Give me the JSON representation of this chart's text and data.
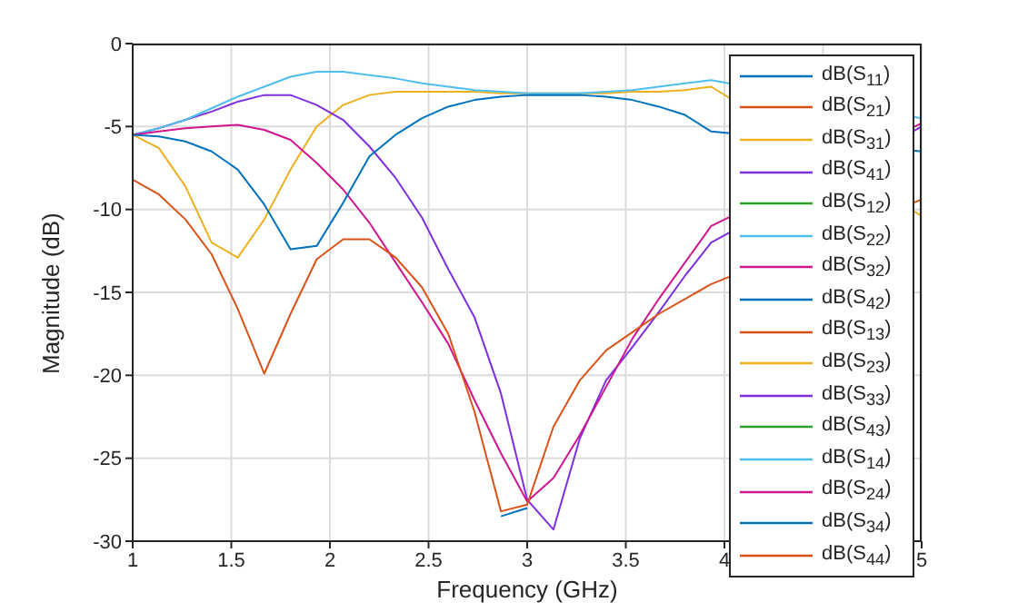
{
  "chart_data": {
    "type": "line",
    "xlabel": "Frequency (GHz)",
    "ylabel": "Magnitude (dB)",
    "x": [
      1,
      1.133,
      1.267,
      1.4,
      1.533,
      1.667,
      1.8,
      1.933,
      2.067,
      2.2,
      2.333,
      2.467,
      2.6,
      2.733,
      2.867,
      3,
      3.133,
      3.267,
      3.4,
      3.533,
      3.667,
      3.8,
      3.933,
      4.067,
      4.2,
      4.333,
      4.467,
      4.6,
      4.733,
      4.867,
      5
    ],
    "xlim": [
      1,
      5
    ],
    "ylim": [
      -30,
      0
    ],
    "xticks": [
      1,
      1.5,
      2,
      2.5,
      3,
      3.5,
      4,
      {
        "value": 4.5,
        "label": null
      },
      5
    ],
    "yticks": [
      -30,
      -25,
      -20,
      -15,
      -10,
      -5,
      0
    ],
    "grid": true,
    "legend": "right",
    "series": [
      {
        "name": "dB(S$_{11}$)",
        "color": "#0072bd",
        "values": [
          null,
          null,
          null,
          null,
          null,
          null,
          null,
          null,
          null,
          null,
          null,
          null,
          null,
          null,
          -28.5,
          -28.0,
          null,
          null,
          null,
          null,
          null,
          null,
          null,
          null,
          null,
          null,
          null,
          null,
          null,
          null,
          null
        ]
      },
      {
        "name": "dB(S$_{21}$)",
        "color": "#d95319",
        "values": [
          null,
          null,
          null,
          null,
          null,
          null,
          null,
          null,
          null,
          null,
          null,
          null,
          null,
          null,
          null,
          null,
          null,
          null,
          null,
          null,
          null,
          null,
          null,
          null,
          null,
          null,
          null,
          null,
          null,
          null,
          null
        ]
      },
      {
        "name": "dB(S$_{31}$)",
        "color": "#edb120",
        "values": [
          null,
          null,
          null,
          null,
          null,
          null,
          null,
          null,
          null,
          null,
          null,
          null,
          null,
          null,
          null,
          null,
          null,
          null,
          null,
          null,
          null,
          null,
          null,
          null,
          null,
          null,
          null,
          null,
          null,
          null,
          null
        ]
      },
      {
        "name": "dB(S$_{41}$)",
        "color": "#7e2fe0",
        "values": [
          null,
          null,
          null,
          null,
          null,
          null,
          null,
          null,
          null,
          null,
          null,
          null,
          null,
          null,
          null,
          null,
          null,
          null,
          null,
          null,
          null,
          null,
          null,
          null,
          null,
          null,
          null,
          null,
          null,
          null,
          null
        ]
      },
      {
        "name": "dB(S$_{12}$)",
        "color": "#2ca02c",
        "values": [
          null,
          null,
          null,
          null,
          null,
          null,
          null,
          null,
          null,
          null,
          null,
          null,
          null,
          null,
          null,
          null,
          null,
          null,
          null,
          null,
          null,
          null,
          null,
          null,
          null,
          null,
          null,
          null,
          null,
          null,
          null
        ]
      },
      {
        "name": "dB(S$_{22}$)",
        "color": "#4dbeee",
        "values": [
          null,
          null,
          null,
          null,
          null,
          null,
          null,
          null,
          null,
          null,
          null,
          null,
          null,
          null,
          null,
          null,
          null,
          null,
          null,
          null,
          null,
          null,
          null,
          null,
          null,
          null,
          null,
          null,
          null,
          null,
          null
        ]
      },
      {
        "name": "dB(S$_{32}$)",
        "color": "#d0158f",
        "values": [
          null,
          null,
          null,
          null,
          null,
          null,
          null,
          null,
          null,
          null,
          null,
          null,
          null,
          null,
          null,
          null,
          null,
          null,
          null,
          null,
          null,
          null,
          null,
          null,
          null,
          null,
          null,
          null,
          null,
          null,
          null
        ]
      },
      {
        "name": "dB(S$_{42}$)",
        "color": "#0072bd",
        "values": [
          null,
          null,
          null,
          null,
          null,
          null,
          null,
          null,
          null,
          null,
          null,
          null,
          null,
          null,
          null,
          null,
          null,
          null,
          null,
          null,
          null,
          null,
          null,
          null,
          null,
          null,
          null,
          null,
          null,
          null,
          null
        ]
      },
      {
        "name": "dB(S$_{13}$)",
        "color": "#d95319",
        "values": [
          null,
          null,
          null,
          null,
          null,
          null,
          null,
          null,
          null,
          null,
          null,
          null,
          null,
          null,
          null,
          null,
          null,
          null,
          null,
          null,
          null,
          null,
          null,
          null,
          null,
          null,
          null,
          null,
          null,
          null,
          null
        ]
      },
      {
        "name": "dB(S$_{23}$)",
        "color": "#edb120",
        "values": [
          -5.5,
          -6.3,
          -8.6,
          -12.0,
          -12.9,
          -10.6,
          -7.6,
          -5.0,
          -3.7,
          -3.1,
          -2.9,
          -2.9,
          -2.9,
          -2.9,
          -3.0,
          -3.0,
          -3.0,
          -3.0,
          -3.0,
          -2.9,
          -2.9,
          -2.8,
          -2.6,
          null,
          null,
          null,
          null,
          null,
          null,
          null,
          -10.4
        ]
      },
      {
        "name": "dB(S$_{33}$)",
        "color": "#7e2fe0",
        "values": [
          -5.5,
          -5.1,
          -4.6,
          -4.1,
          -3.5,
          -3.1,
          -3.1,
          -3.7,
          -4.6,
          -6.2,
          -8.1,
          -10.5,
          -13.6,
          -16.5,
          -21.1,
          -27.5,
          -29.3,
          -23.8,
          -20.3,
          -18.3,
          -16.2,
          -14.0,
          -12.0,
          null,
          null,
          null,
          null,
          null,
          null,
          null,
          -5.0
        ]
      },
      {
        "name": "dB(S$_{43}$)",
        "color": "#2ca02c",
        "values": [
          null,
          null,
          null,
          null,
          null,
          null,
          null,
          null,
          null,
          null,
          null,
          null,
          null,
          null,
          null,
          null,
          null,
          null,
          null,
          null,
          null,
          null,
          null,
          null,
          null,
          null,
          null,
          null,
          null,
          null,
          null
        ]
      },
      {
        "name": "dB(S$_{14}$)",
        "color": "#4dbeee",
        "values": [
          -5.5,
          -5.1,
          -4.6,
          -3.9,
          -3.2,
          -2.6,
          -2.0,
          -1.7,
          -1.7,
          -1.9,
          -2.1,
          -2.4,
          -2.6,
          -2.8,
          -2.9,
          -3.0,
          -3.0,
          -3.0,
          -2.9,
          -2.8,
          -2.6,
          -2.4,
          -2.2,
          null,
          null,
          null,
          null,
          null,
          null,
          null,
          -4.5
        ]
      },
      {
        "name": "dB(S$_{24}$)",
        "color": "#d0158f",
        "values": [
          -5.5,
          -5.3,
          -5.1,
          -5.0,
          -4.9,
          -5.2,
          -5.8,
          -7.2,
          -8.8,
          -10.8,
          -13.2,
          -15.6,
          -18.1,
          -21.5,
          -24.7,
          -27.6,
          -26.2,
          -23.6,
          -20.7,
          -17.8,
          -15.4,
          -13.2,
          -11.0,
          null,
          null,
          null,
          null,
          null,
          null,
          null,
          -4.8
        ]
      },
      {
        "name": "dB(S$_{34}$)",
        "color": "#0072bd",
        "values": [
          -5.5,
          -5.6,
          -5.9,
          -6.5,
          -7.6,
          -9.7,
          -12.4,
          -12.2,
          -9.6,
          -6.8,
          -5.5,
          -4.5,
          -3.8,
          -3.4,
          -3.2,
          -3.1,
          -3.1,
          -3.1,
          -3.2,
          -3.4,
          -3.8,
          -4.3,
          -5.3,
          null,
          null,
          null,
          null,
          null,
          null,
          null,
          -6.5
        ]
      },
      {
        "name": "dB(S$_{44}$)",
        "color": "#d95319",
        "values": [
          -8.2,
          -9.1,
          -10.6,
          -12.7,
          -16.0,
          -19.9,
          -16.3,
          -13.0,
          -11.8,
          -11.8,
          -12.9,
          -14.7,
          -17.5,
          -22.2,
          -28.2,
          -27.8,
          -23.1,
          -20.3,
          -18.5,
          -17.4,
          -16.3,
          -15.4,
          -14.5,
          null,
          null,
          null,
          null,
          null,
          null,
          null,
          -9.4
        ]
      }
    ]
  }
}
